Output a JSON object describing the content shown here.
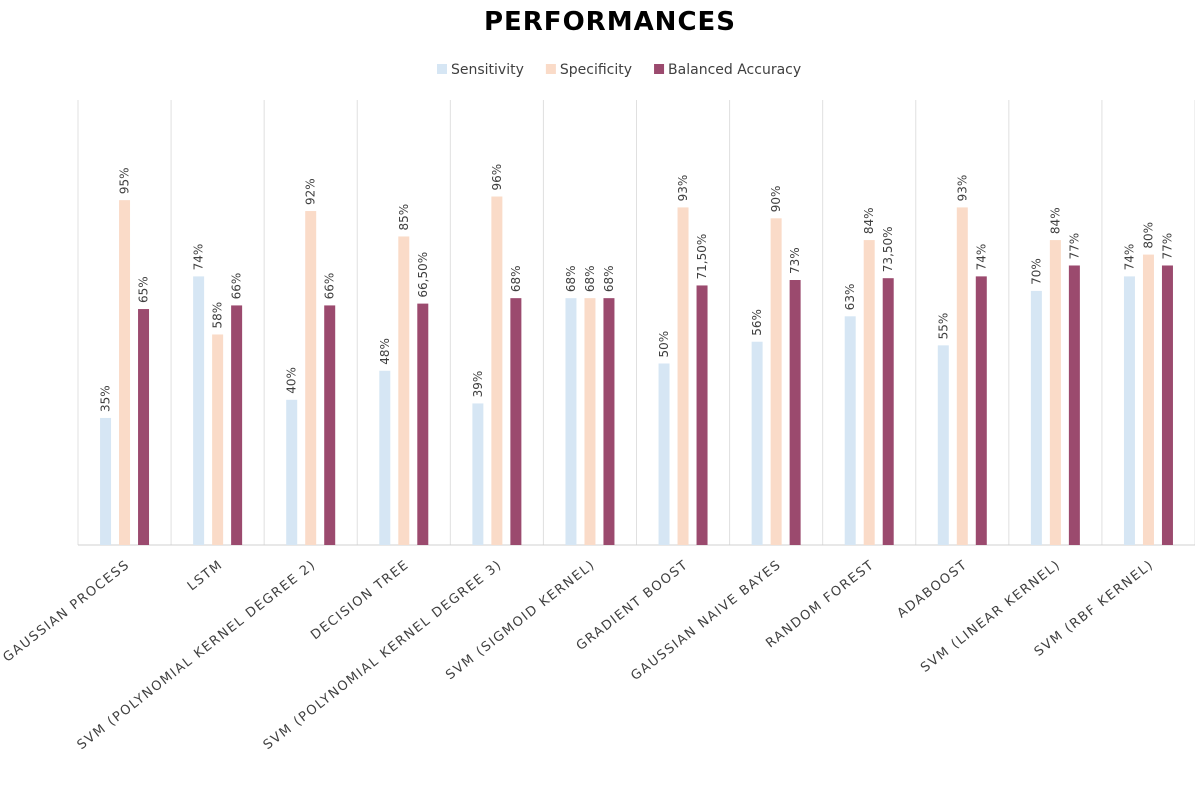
{
  "chart_data": {
    "type": "bar",
    "title": "PERFORMANCES",
    "categories": [
      "GAUSSIAN PROCESS",
      "LSTM",
      "SVM (POLYNOMIAL KERNEL DEGREE 2)",
      "DECISION TREE",
      "SVM (POLYNOMIAL KERNEL DEGREE 3)",
      "SVM (SIGMOID KERNEL)",
      "GRADIENT BOOST",
      "GAUSSIAN NAIVE BAYES",
      "RANDOM FOREST",
      "ADABOOST",
      "SVM (LINEAR KERNEL)",
      "SVM (RBF KERNEL)"
    ],
    "series": [
      {
        "name": "Sensitivity",
        "color": "#d6e6f4",
        "values": [
          35,
          74,
          40,
          48,
          39,
          68,
          50,
          56,
          63,
          55,
          70,
          74
        ],
        "value_labels": [
          "35%",
          "74%",
          "40%",
          "48%",
          "39%",
          "68%",
          "50%",
          "56%",
          "63%",
          "55%",
          "70%",
          "74%"
        ]
      },
      {
        "name": "Specificity",
        "color": "#fadbc8",
        "values": [
          95,
          58,
          92,
          85,
          96,
          68,
          93,
          90,
          84,
          93,
          84,
          80
        ],
        "value_labels": [
          "95%",
          "58%",
          "92%",
          "85%",
          "96%",
          "68%",
          "93%",
          "90%",
          "84%",
          "93%",
          "84%",
          "80%"
        ]
      },
      {
        "name": "Balanced Accuracy",
        "color": "#9b4a6e",
        "values": [
          65,
          66,
          66,
          66.5,
          68,
          68,
          71.5,
          73,
          73.5,
          74,
          77,
          77
        ],
        "value_labels": [
          "65%",
          "66%",
          "66%",
          "66,50%",
          "68%",
          "68%",
          "71,50%",
          "73%",
          "73,50%",
          "74%",
          "77%",
          "77%"
        ]
      }
    ],
    "ylim": [
      0,
      100
    ],
    "legend": "top"
  }
}
